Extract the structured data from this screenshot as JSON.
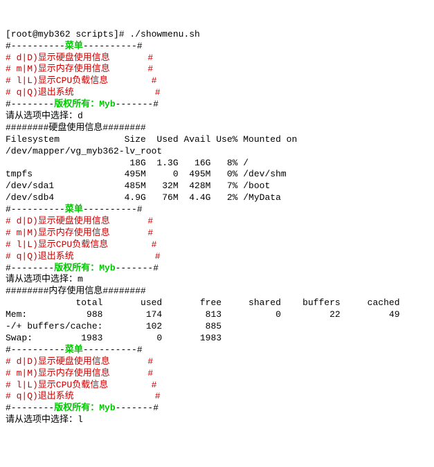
{
  "prompt": "[root@myb362 scripts]# ./showmenu.sh",
  "menu": {
    "border_top": "#----------",
    "title": "菜单",
    "border_top_end": "----------#",
    "items": [
      "# d|D)显示硬盘使用信息       #",
      "# m|M)显示内存使用信息       #",
      "# l|L)显示CPU负载信息        #",
      "# q|Q)退出系统               #"
    ],
    "border_bot": "#--------",
    "copyright": "版权所有：Myb",
    "border_bot_end": "-------#"
  },
  "select_prompt": "请从选项中选择：",
  "sel1": "d",
  "sel2": "m",
  "sel3": "l",
  "disk": {
    "header": "########硬盘使用信息########",
    "cols": "Filesystem            Size  Used Avail Use% Mounted on",
    "r0": "/dev/mapper/vg_myb362-lv_root",
    "r1": "                       18G  1.3G   16G   8% /",
    "r2": "tmpfs                 495M     0  495M   0% /dev/shm",
    "r3": "/dev/sda1             485M   32M  428M   7% /boot",
    "r4": "/dev/sdb4             4.9G   76M  4.4G   2% /MyData"
  },
  "mem": {
    "header": "########内存使用信息########",
    "cols": "             total       used       free     shared    buffers     cached",
    "r0": "Mem:           988        174        813          0         22         49",
    "r1": "-/+ buffers/cache:        102        885",
    "r2": "Swap:         1983          0       1983"
  }
}
